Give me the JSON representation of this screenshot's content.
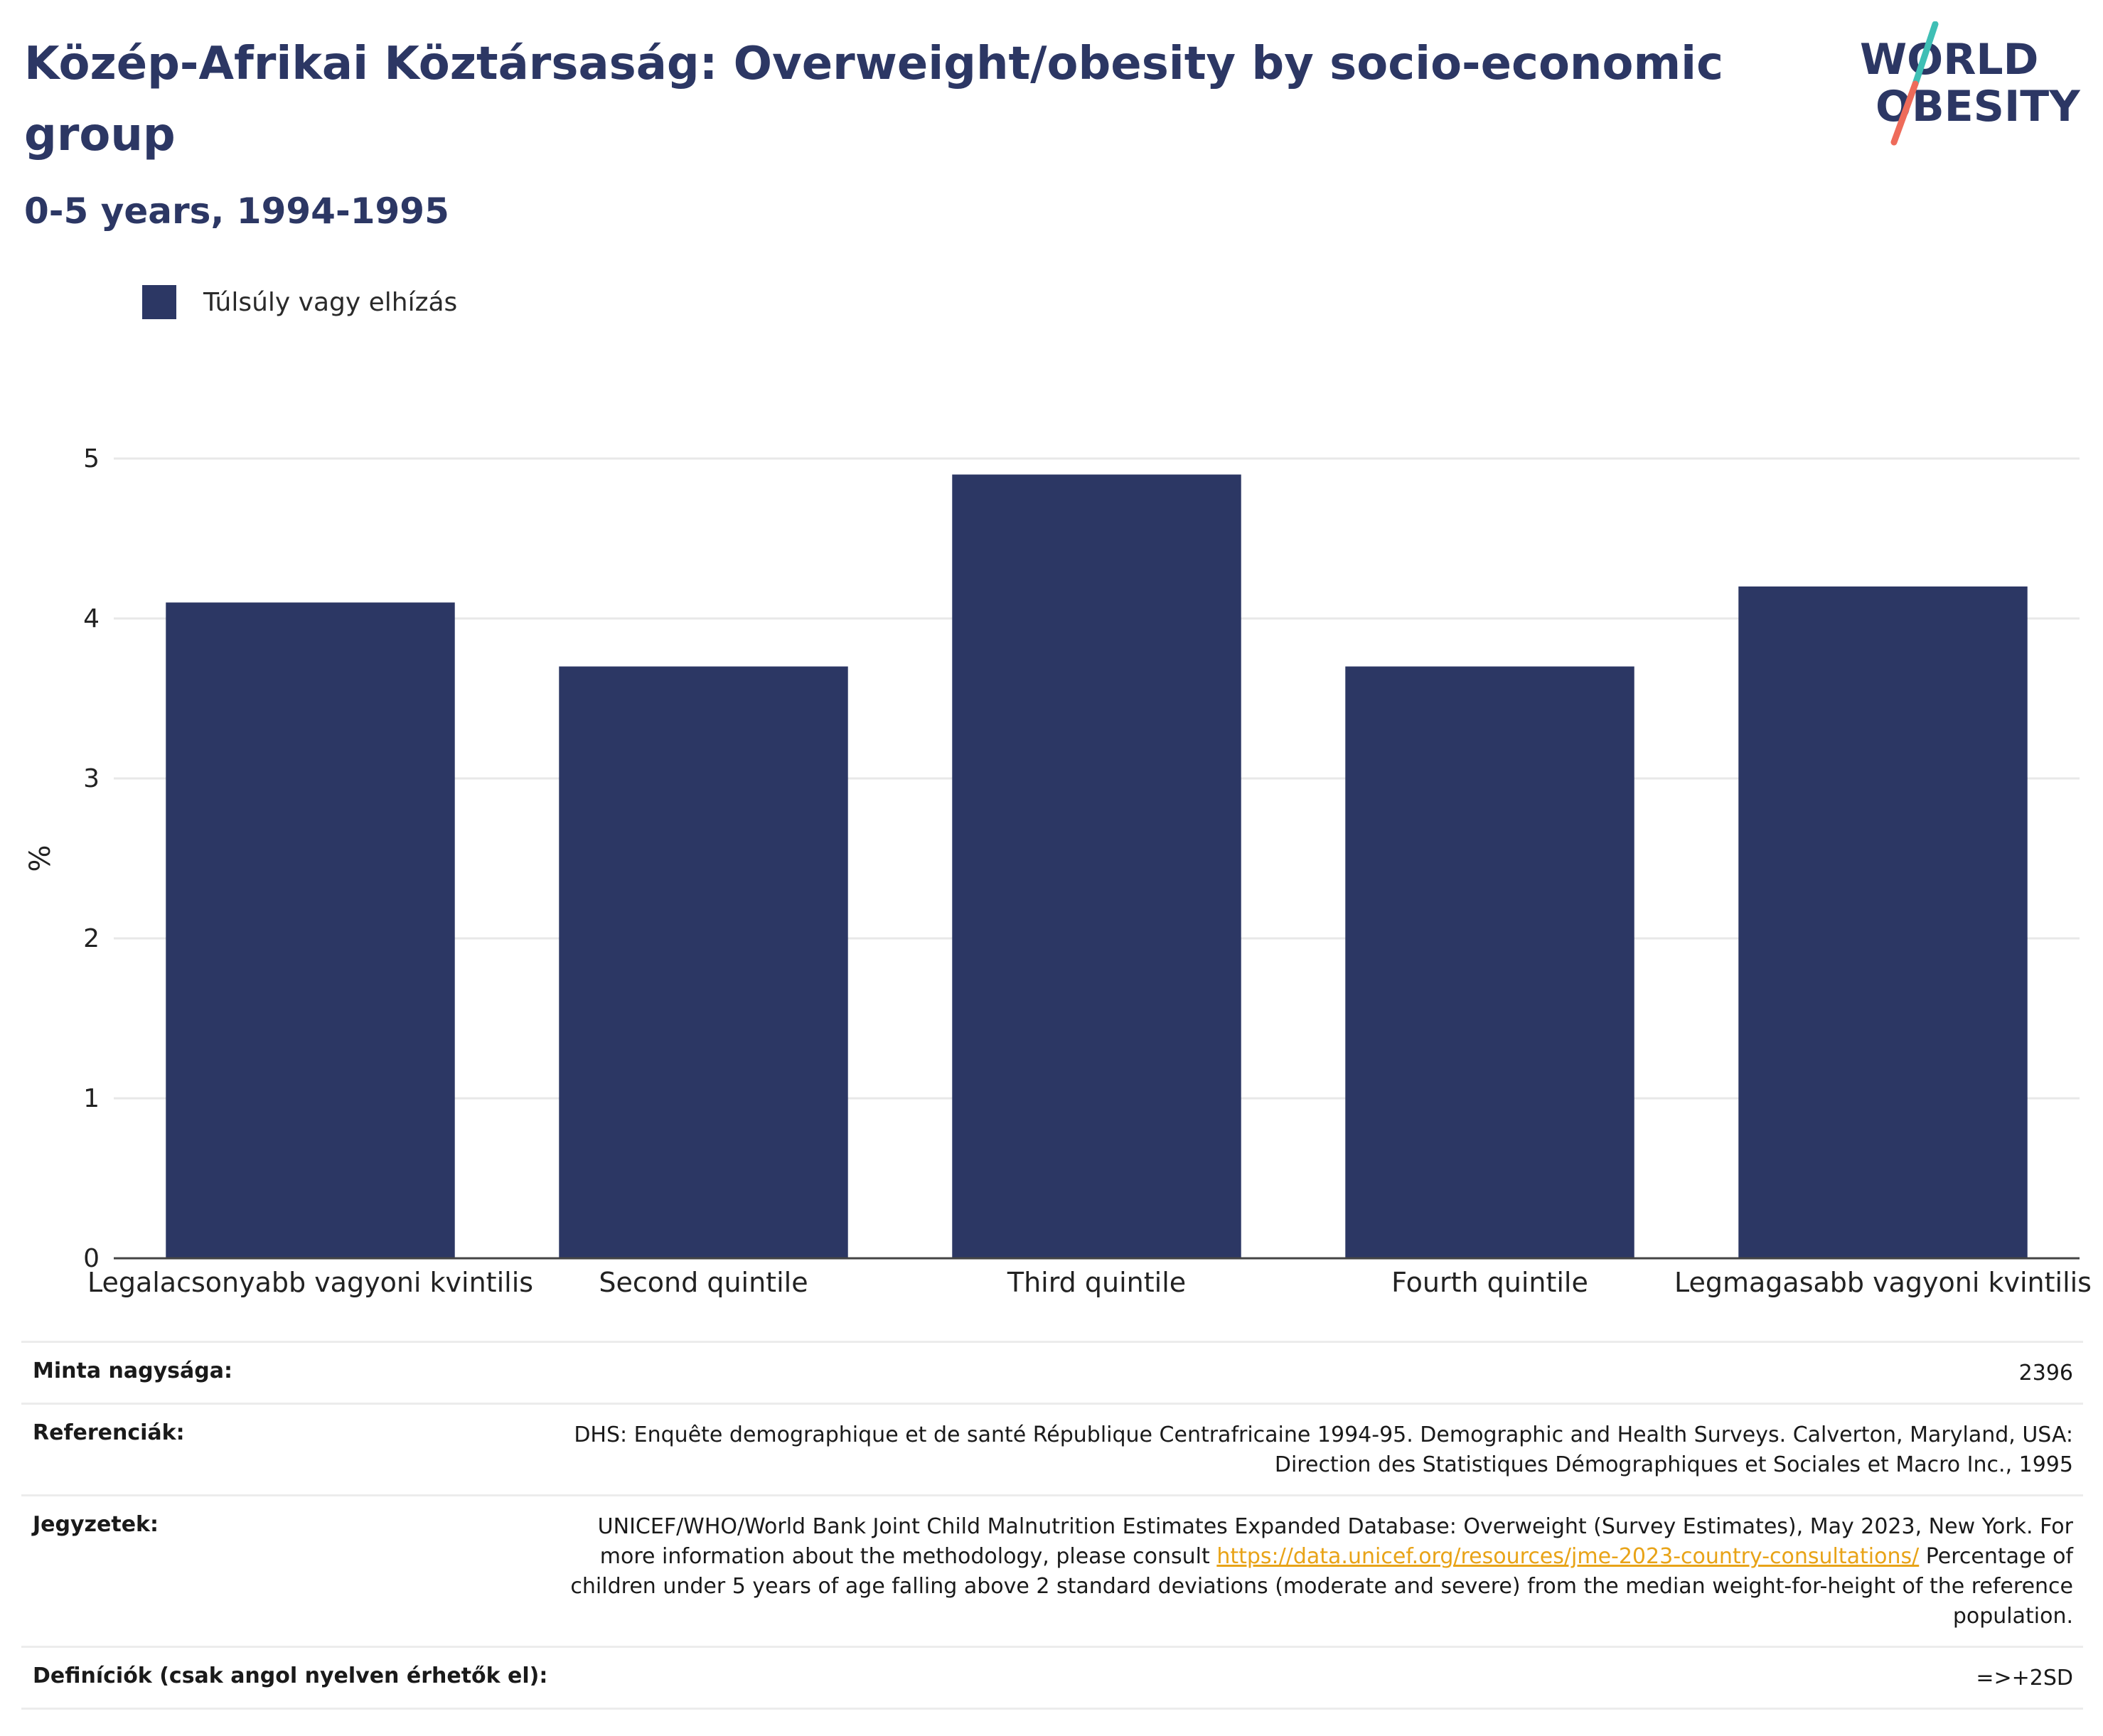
{
  "title": "Közép-Afrikai Köztársaság: Overweight/obesity by socio-economic group",
  "subtitle": "0-5 years, 1994-1995",
  "logo": {
    "line1": "WORLD",
    "line2": "OBESITY"
  },
  "colors": {
    "bar": "#2c3764",
    "title": "#2c3764",
    "link": "#e8a317",
    "logo_teal": "#3fbfb5",
    "logo_coral": "#ee6b5a"
  },
  "chart_data": {
    "type": "bar",
    "categories": [
      "Legalacsonyabb vagyoni kvintilis",
      "Second quintile",
      "Third quintile",
      "Fourth quintile",
      "Legmagasabb vagyoni kvintilis"
    ],
    "series": [
      {
        "name": "Túlsúly vagy elhízás",
        "values": [
          4.1,
          3.7,
          4.9,
          3.7,
          4.2
        ]
      }
    ],
    "ylabel": "%",
    "xlabel": "",
    "ylim": [
      0,
      5
    ],
    "yticks": [
      0,
      1,
      2,
      3,
      4,
      5
    ],
    "grid": true,
    "legend_position": "top-left"
  },
  "meta": [
    {
      "key": "Minta nagysága:",
      "value": "2396"
    },
    {
      "key": "Referenciák:",
      "value": "DHS: Enquête demographique et de santé République Centrafricaine 1994-95. Demographic and Health Surveys. Calverton, Maryland, USA: Direction des Statistiques Démographiques et Sociales et Macro Inc., 1995"
    },
    {
      "key": "Jegyzetek:",
      "value_pre": "UNICEF/WHO/World Bank Joint Child Malnutrition Estimates Expanded Database: Overweight (Survey Estimates), May 2023, New York. For more information about the methodology, please consult ",
      "link": "https://data.unicef.org/resources/jme-2023-country-consultations/",
      "value_post": " Percentage of children under 5 years of age falling above 2 standard deviations (moderate and severe) from the median weight-for-height of the reference population."
    },
    {
      "key": "Definíciók (csak angol nyelven érhetők el):",
      "value": "=>+2SD"
    }
  ]
}
